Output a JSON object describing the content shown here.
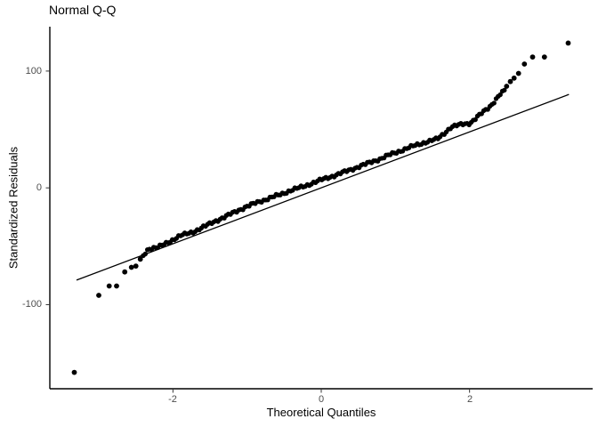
{
  "title": "Normal Q-Q",
  "axes": {
    "x": {
      "label": "Theoretical Quantiles"
    },
    "y": {
      "label": "Standardized Residuals"
    }
  },
  "colors": {
    "point": "#000000",
    "reference_line": "#000000",
    "axis_line": "#000000",
    "tick_mark": "#333333",
    "tick_label": "#4d4d4d",
    "title_text": "#000000",
    "background": "#ffffff"
  },
  "chart_data": {
    "type": "scatter",
    "title": "Normal Q-Q",
    "xlabel": "Theoretical Quantiles",
    "ylabel": "Standardized Residuals",
    "xlim": [
      -3.66,
      3.66
    ],
    "ylim": [
      -172,
      138
    ],
    "x_ticks": [
      -2,
      0,
      2
    ],
    "y_ticks": [
      -100,
      0,
      100
    ],
    "grid": false,
    "legend": false,
    "ref_line": {
      "x1": -3.3,
      "y1": -79,
      "x2": 3.34,
      "y2": 80
    },
    "isolated_points": [
      [
        -3.33,
        -158
      ],
      [
        -3.0,
        -92
      ],
      [
        -2.86,
        -84
      ],
      [
        -2.76,
        -84
      ],
      [
        -2.65,
        -72
      ],
      [
        -2.56,
        -68
      ],
      [
        -2.5,
        -67
      ],
      [
        -2.44,
        -61
      ],
      [
        2.5,
        87
      ],
      [
        2.55,
        91
      ],
      [
        2.6,
        94
      ],
      [
        2.66,
        98
      ],
      [
        2.74,
        106
      ],
      [
        2.85,
        112
      ],
      [
        3.01,
        112
      ],
      [
        3.33,
        124
      ]
    ],
    "dense_band": {
      "anchors": [
        [
          -2.4,
          -58
        ],
        [
          -2.33,
          -52
        ],
        [
          -2.2,
          -51
        ],
        [
          -2.05,
          -46
        ],
        [
          -1.9,
          -41
        ],
        [
          -1.72,
          -37.5
        ],
        [
          -1.6,
          -34
        ],
        [
          -1.45,
          -29
        ],
        [
          -1.3,
          -25
        ],
        [
          -1.15,
          -20
        ],
        [
          -1.0,
          -16
        ],
        [
          -0.85,
          -12
        ],
        [
          -0.7,
          -9
        ],
        [
          -0.55,
          -5.5
        ],
        [
          -0.4,
          -2
        ],
        [
          -0.25,
          1
        ],
        [
          -0.1,
          4.5
        ],
        [
          0.05,
          8
        ],
        [
          0.2,
          11
        ],
        [
          0.35,
          14.5
        ],
        [
          0.5,
          18
        ],
        [
          0.65,
          21.5
        ],
        [
          0.8,
          25
        ],
        [
          0.95,
          29
        ],
        [
          1.1,
          32.5
        ],
        [
          1.25,
          36
        ],
        [
          1.4,
          39
        ],
        [
          1.57,
          42
        ],
        [
          1.68,
          48
        ],
        [
          1.75,
          52
        ],
        [
          1.9,
          54.5
        ],
        [
          2.01,
          55.5
        ],
        [
          2.13,
          62
        ],
        [
          2.28,
          70
        ],
        [
          2.41,
          80
        ],
        [
          2.47,
          83
        ]
      ],
      "n_points": 175
    }
  }
}
